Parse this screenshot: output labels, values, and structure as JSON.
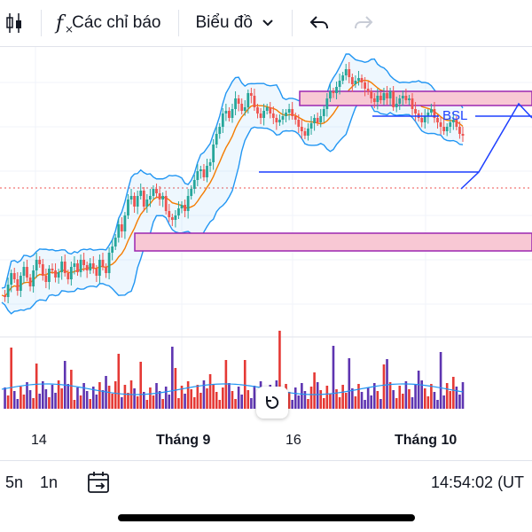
{
  "toolbar": {
    "indicators_label": "Các chỉ báo",
    "chart_type_label": "Biểu đồ",
    "icons": [
      "candles-icon",
      "function-icon",
      "chevron-down-icon",
      "undo-icon",
      "redo-icon"
    ]
  },
  "annotations": {
    "bsl_label": "BSL"
  },
  "time_axis": {
    "labels": [
      "14",
      "Tháng 9",
      "16",
      "Tháng 10"
    ]
  },
  "bottom_bar": {
    "range_5n": "5n",
    "range_1n": "1n",
    "time": "14:54:02 (UT"
  },
  "colors": {
    "bullish": "#26a69a",
    "bearish": "#ef5350",
    "volume_up": "#e53935",
    "volume_down": "#5e35b1",
    "bollinger": "#2196f3",
    "ma": "#f57c00",
    "zone_fill": "#f8c8d4",
    "zone_stroke": "#9c27b0",
    "bsl_line": "#1e40ff"
  },
  "chart_data": {
    "type": "candlestick",
    "x_labels": [
      "14",
      "Tháng 9",
      "16",
      "Tháng 10"
    ],
    "closes": [
      150,
      148,
      162,
      175,
      168,
      155,
      172,
      182,
      170,
      160,
      178,
      190,
      185,
      172,
      165,
      180,
      178,
      170,
      176,
      188,
      175,
      168,
      182,
      186,
      176,
      190,
      184,
      178,
      186,
      180,
      172,
      190,
      182,
      175,
      198,
      205,
      215,
      230,
      222,
      240,
      258,
      262,
      250,
      262,
      268,
      250,
      258,
      262,
      270,
      265,
      258,
      262,
      245,
      238,
      235,
      240,
      248,
      252,
      245,
      262,
      270,
      280,
      290,
      292,
      283,
      296,
      300,
      320,
      332,
      340,
      355,
      358,
      350,
      360,
      372,
      366,
      358,
      362,
      378,
      375,
      362,
      355,
      350,
      358,
      362,
      355,
      350,
      345,
      348,
      352,
      356,
      360,
      352,
      348,
      340,
      335,
      330,
      338,
      344,
      350,
      345,
      352,
      360,
      372,
      380,
      378,
      385,
      392,
      398,
      405,
      396,
      388,
      392,
      395,
      390,
      383,
      380,
      372,
      368,
      375,
      370,
      378,
      372,
      380,
      362,
      366,
      372,
      375,
      370,
      372,
      360,
      355,
      350,
      345,
      352,
      356,
      360,
      350,
      345,
      340,
      335,
      340,
      345,
      348,
      340,
      332,
      330
    ]
  }
}
